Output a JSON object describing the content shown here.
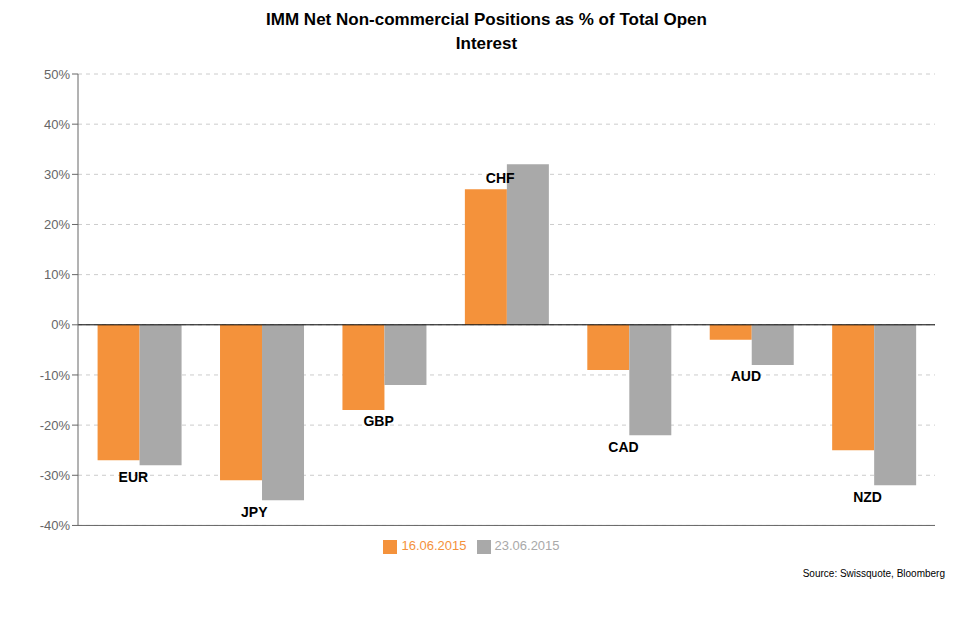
{
  "chart_data": {
    "type": "bar",
    "title": "IMM Net Non-commercial Positions as % of Total Open\nInterest",
    "categories": [
      "EUR",
      "JPY",
      "GBP",
      "CHF",
      "CAD",
      "AUD",
      "NZD"
    ],
    "series": [
      {
        "name": "16.06.2015",
        "color": "#F4923B",
        "values": [
          -27,
          -31,
          -17,
          27,
          -9,
          -3,
          -25
        ]
      },
      {
        "name": "23.06.2015",
        "color": "#A9A9A9",
        "values": [
          -28,
          -35,
          -12,
          32,
          -22,
          -8,
          -32
        ]
      }
    ],
    "ylim": [
      -40,
      50
    ],
    "yticks": [
      {
        "value": -40,
        "label": "-40%"
      },
      {
        "value": -30,
        "label": "-30%"
      },
      {
        "value": -20,
        "label": "-20%"
      },
      {
        "value": -10,
        "label": "-10%"
      },
      {
        "value": 0,
        "label": "0%"
      },
      {
        "value": 10,
        "label": "10%"
      },
      {
        "value": 20,
        "label": "20%"
      },
      {
        "value": 30,
        "label": "30%"
      },
      {
        "value": 40,
        "label": "40%"
      },
      {
        "value": 50,
        "label": "50%"
      }
    ],
    "grid": true,
    "legend": "bottom",
    "tick_labels": "y",
    "annotations": [
      "Source: Swissquote, Bloomberg"
    ]
  }
}
